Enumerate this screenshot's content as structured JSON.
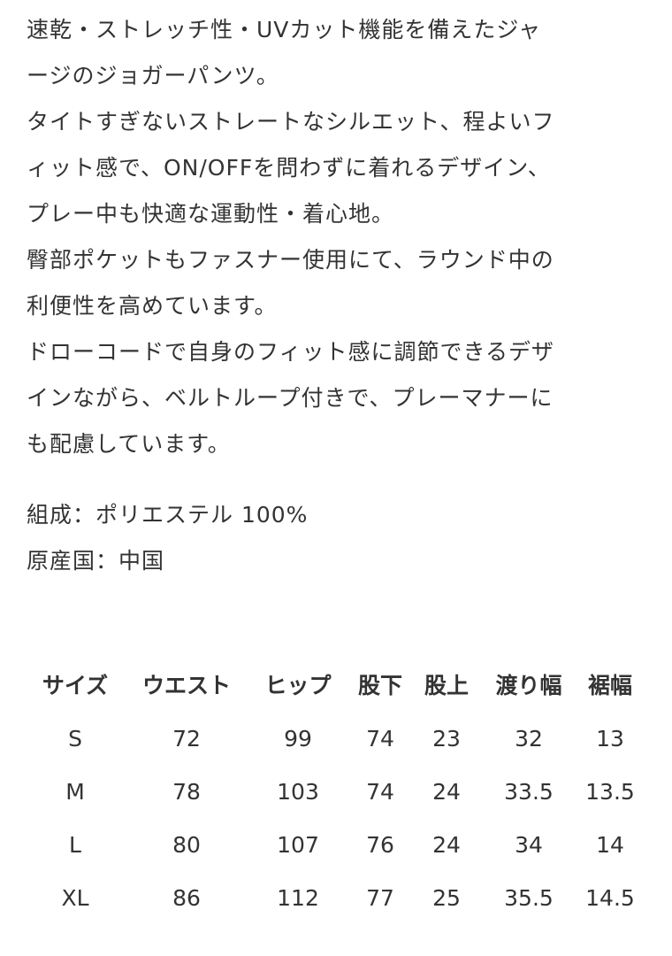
{
  "description": [
    "速乾・ストレッチ性・UVカット機能を備えたジャ",
    "ージのジョガーパンツ。",
    "タイトすぎないストレートなシルエット、程よいフ",
    "ィット感で、ON/OFFを問わずに着れるデザイン、",
    "プレー中も快適な運動性・着心地。",
    "臀部ポケットもファスナー使用にて、ラウンド中の",
    "利便性を高めています。",
    "ドローコードで自身のフィット感に調節できるデザ",
    "インながら、ベルトループ付きで、プレーマナーに",
    "も配慮しています。"
  ],
  "specs": {
    "material": "組成：ポリエステル 100%",
    "origin": "原産国：中国"
  },
  "size_table": {
    "headers": [
      "サイズ",
      "ウエスト",
      "ヒップ",
      "股下",
      "股上",
      "渡り幅",
      "裾幅"
    ],
    "rows": [
      [
        "S",
        "72",
        "99",
        "74",
        "23",
        "32",
        "13"
      ],
      [
        "M",
        "78",
        "103",
        "74",
        "24",
        "33.5",
        "13.5"
      ],
      [
        "L",
        "80",
        "107",
        "76",
        "24",
        "34",
        "14"
      ],
      [
        "XL",
        "86",
        "112",
        "77",
        "25",
        "35.5",
        "14.5"
      ]
    ]
  }
}
